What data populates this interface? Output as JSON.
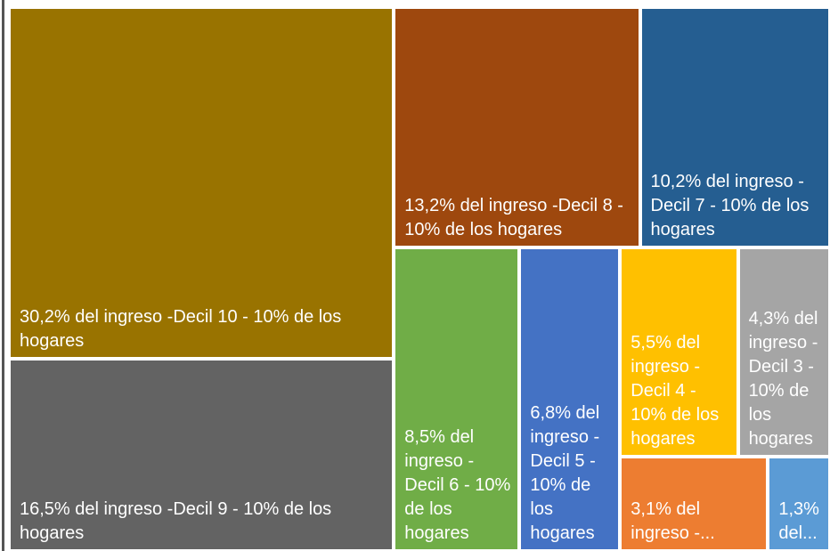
{
  "chart_data": {
    "type": "treemap",
    "categories": [
      "30,2% del ingreso -Decil 10 - 10% de los hogares",
      "16,5% del ingreso -Decil 9 - 10% de los hogares",
      "13,2% del ingreso -Decil 8 - 10% de los hogares",
      "10,2% del ingreso - Decil 7 - 10% de los hogares",
      "8,5% del ingreso - Decil 6 - 10% de los hogares",
      "6,8% del ingreso - Decil 5 - 10% de los hogares",
      "5,5% del ingreso - Decil 4 - 10% de los hogares",
      "4,3% del ingreso - Decil 3 - 10% de los hogares",
      "3,1% del ingreso -...",
      "1,3% del..."
    ],
    "values": [
      30.2,
      16.5,
      13.2,
      10.2,
      8.5,
      6.8,
      5.5,
      4.3,
      3.1,
      1.3
    ],
    "colors": [
      "#997300",
      "#636363",
      "#9e480e",
      "#255e91",
      "#70ad47",
      "#4472c4",
      "#ffc000",
      "#a5a5a5",
      "#ed7d31",
      "#5b9bd5"
    ]
  }
}
